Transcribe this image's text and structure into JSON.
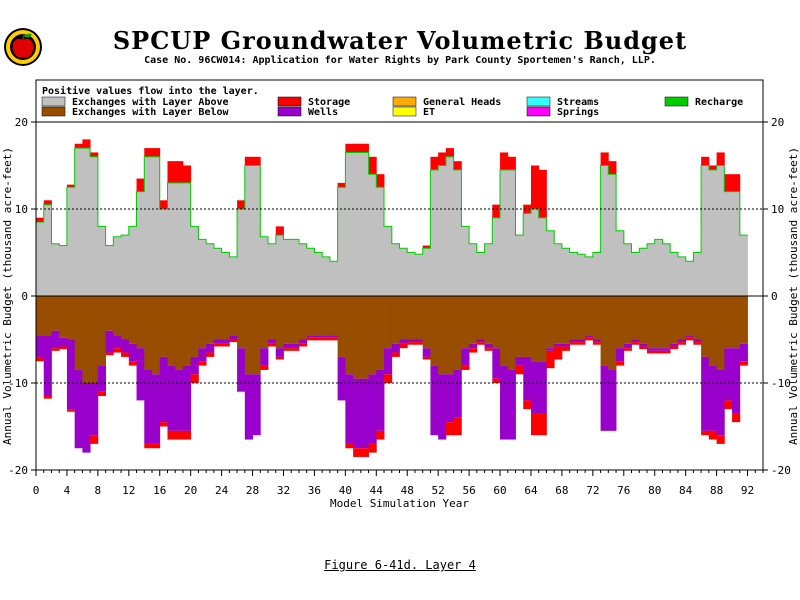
{
  "figure": {
    "title": "SPCUP Groundwater Volumetric Budget",
    "subtitle": "Case No. 96CW014: Application for Water Rights by Park County Sportemen's Ranch, LLP.",
    "caption": "Figure 6-41d.  Layer 4"
  },
  "chart_data": {
    "type": "bar",
    "stacked": true,
    "title": "SPCUP Groundwater Volumetric Budget",
    "xlabel": "Model Simulation Year",
    "ylabel": "Annual Volumetric Budget (thousand acre-feet)",
    "xlim": [
      0,
      94
    ],
    "ylim": [
      -20,
      20
    ],
    "x_ticks": [
      0,
      4,
      8,
      12,
      16,
      20,
      24,
      28,
      32,
      36,
      40,
      44,
      48,
      52,
      56,
      60,
      64,
      68,
      72,
      76,
      80,
      84,
      88,
      92
    ],
    "y_ticks": [
      20,
      10,
      0,
      -10,
      -20
    ],
    "reference_lines": [
      10,
      -10
    ],
    "legend_note": "Positive values flow into the layer.",
    "legend_placement": "top, inside plot",
    "legend": [
      {
        "name": "Exchanges with Layer Above",
        "color": "#c0c0c0"
      },
      {
        "name": "Exchanges with Layer Below",
        "color": "#994d00"
      },
      {
        "name": "Storage",
        "color": "#ff0000"
      },
      {
        "name": "Wells",
        "color": "#9900cc"
      },
      {
        "name": "General Heads",
        "color": "#ffaa00"
      },
      {
        "name": "ET",
        "color": "#ffff00"
      },
      {
        "name": "Streams",
        "color": "#33ffff"
      },
      {
        "name": "Springs",
        "color": "#ff00ff"
      },
      {
        "name": "Recharge",
        "color": "#00cc00"
      }
    ],
    "years": [
      0,
      1,
      2,
      3,
      4,
      5,
      6,
      7,
      8,
      9,
      10,
      11,
      12,
      13,
      14,
      15,
      16,
      17,
      18,
      19,
      20,
      21,
      22,
      23,
      24,
      25,
      26,
      27,
      28,
      29,
      30,
      31,
      32,
      33,
      34,
      35,
      36,
      37,
      38,
      39,
      40,
      41,
      42,
      43,
      44,
      45,
      46,
      47,
      48,
      49,
      50,
      51,
      52,
      53,
      54,
      55,
      56,
      57,
      58,
      59,
      60,
      61,
      62,
      63,
      64,
      65,
      66,
      67,
      68,
      69,
      70,
      71,
      72,
      73,
      74,
      75,
      76,
      77,
      78,
      79,
      80,
      81,
      82,
      83,
      84,
      85,
      86,
      87,
      88,
      89,
      90,
      91,
      92,
      93
    ],
    "series": [
      {
        "name": "Exchanges with Layer Above",
        "values": [
          8.5,
          10.5,
          6,
          5.8,
          12.5,
          17,
          17,
          16,
          8,
          5.8,
          6.8,
          7,
          8,
          12,
          16,
          16,
          10,
          13,
          13,
          13,
          8,
          6.5,
          6,
          5.5,
          5,
          4.5,
          10,
          15,
          15,
          6.8,
          6,
          7,
          6.5,
          6.5,
          6,
          5.5,
          5,
          4.5,
          4,
          12.5,
          16.5,
          16.5,
          16.5,
          14,
          12.5,
          8,
          6,
          5.5,
          5,
          4.8,
          5.5,
          14.5,
          15,
          16,
          14.5,
          8,
          6,
          5,
          6,
          9,
          14.5,
          14.5,
          7,
          9.5,
          10,
          9,
          7.5,
          6,
          5.5,
          5,
          4.8,
          4.5,
          5,
          15,
          14,
          7.5,
          6,
          5,
          5.5,
          6,
          6.5,
          6,
          5,
          4.5,
          4,
          5,
          15,
          14.5,
          15,
          12,
          12,
          7
        ]
      },
      {
        "name": "Storage",
        "values": [
          0.5,
          0.5,
          0,
          0,
          0.3,
          0.5,
          1,
          0.5,
          0,
          0,
          0,
          0,
          0,
          1.5,
          1,
          1,
          1,
          2.5,
          2.5,
          2,
          0,
          0,
          0,
          0,
          0,
          0,
          1,
          1,
          1,
          0,
          0,
          1,
          0,
          0,
          0,
          0,
          0,
          0,
          0,
          0.5,
          1,
          1,
          1,
          2,
          1.5,
          0,
          0,
          0,
          0,
          0,
          0.3,
          1.5,
          1.5,
          1,
          1,
          0,
          0,
          0,
          0,
          1.5,
          2,
          1.5,
          0,
          1,
          5,
          5.5,
          0,
          0,
          0,
          0,
          0,
          0,
          0,
          1.5,
          1.5,
          0,
          0,
          0,
          0,
          0,
          0,
          0,
          0,
          0,
          0,
          0,
          1,
          0.5,
          1.5,
          2,
          2,
          0
        ]
      },
      {
        "name": "Exchanges with Layer Below",
        "values": [
          -4.5,
          -4.5,
          -4,
          -4.8,
          -5,
          -8.5,
          -10,
          -10,
          -8,
          -4,
          -4.5,
          -5,
          -5.5,
          -6,
          -8.5,
          -9,
          -7,
          -8,
          -8.5,
          -8,
          -7,
          -6,
          -5.5,
          -5,
          -5,
          -4.5,
          -6,
          -9,
          -9,
          -6,
          -5,
          -6,
          -5.5,
          -5.5,
          -5,
          -4.5,
          -4.5,
          -4.5,
          -4.5,
          -7,
          -9,
          -9.5,
          -9.5,
          -9,
          -8.5,
          -6,
          -5.5,
          -5,
          -5,
          -5,
          -6,
          -8,
          -9,
          -9,
          -8.5,
          -6,
          -5.5,
          -5,
          -5.5,
          -6,
          -8,
          -8.5,
          -7,
          -7,
          -7.5,
          -7.5,
          -6,
          -5.5,
          -5.5,
          -5,
          -5,
          -4.5,
          -5,
          -8,
          -8.5,
          -6,
          -5.5,
          -5,
          -5.5,
          -6,
          -6,
          -6,
          -5.5,
          -5,
          -4.5,
          -5,
          -7,
          -8,
          -8.5,
          -6,
          -6,
          -5.5
        ]
      },
      {
        "name": "Wells",
        "values": [
          -2.5,
          -7,
          -2,
          -1,
          -8,
          -9,
          -8,
          -6,
          -3,
          -2.5,
          -1.5,
          -1.5,
          -2,
          -6,
          -8.5,
          -8,
          -7.5,
          -7.5,
          -7,
          -7.5,
          -2,
          -1.5,
          -1,
          -0.5,
          -0.5,
          -0.5,
          -5,
          -7.5,
          -7,
          -2,
          -0.5,
          -1,
          -0.5,
          -0.5,
          -0.5,
          -0.3,
          -0.3,
          -0.3,
          -0.3,
          -5,
          -8,
          -8,
          -8,
          -8,
          -7,
          -3,
          -1,
          -0.5,
          -0.3,
          -0.3,
          -1,
          -8,
          -7.5,
          -5.5,
          -5.5,
          -2,
          -0.5,
          -0.3,
          -0.5,
          -3.5,
          -8.5,
          -8,
          -1,
          -5,
          -6,
          -6,
          -0.3,
          -0.3,
          -0.3,
          -0.3,
          -0.3,
          -0.3,
          -0.3,
          -7.5,
          -7,
          -1.5,
          -0.5,
          -0.3,
          -0.3,
          -0.3,
          -0.3,
          -0.3,
          -0.3,
          -0.3,
          -0.3,
          -0.3,
          -8.5,
          -7.5,
          -7.5,
          -6,
          -7.5,
          -2
        ]
      },
      {
        "name": "Storage (outflow)",
        "values": [
          -0.5,
          -0.3,
          -0.3,
          -0.3,
          -0.3,
          0,
          0,
          -1,
          -0.5,
          -0.3,
          -0.5,
          -0.5,
          -0.5,
          0,
          -0.5,
          -0.5,
          -0.5,
          -1,
          -1,
          -1,
          -1,
          -0.5,
          -0.5,
          -0.3,
          -0.3,
          -0.3,
          0,
          0,
          0,
          -0.5,
          -0.3,
          -0.3,
          -0.3,
          -0.3,
          -0.3,
          -0.3,
          -0.3,
          -0.3,
          -0.3,
          0,
          -0.5,
          -1,
          -1,
          -1,
          -1,
          -1,
          -0.5,
          -0.5,
          -0.3,
          -0.3,
          -0.3,
          0,
          0,
          -1.5,
          -2,
          -0.5,
          -0.5,
          -0.3,
          -0.3,
          -0.5,
          0,
          0,
          -1,
          -1,
          -2.5,
          -2.5,
          -2,
          -1.5,
          -0.5,
          -0.3,
          -0.3,
          -0.3,
          -0.3,
          0,
          0,
          -0.5,
          -0.3,
          -0.3,
          -0.3,
          -0.3,
          -0.3,
          -0.3,
          -0.3,
          -0.3,
          -0.3,
          -0.3,
          -0.5,
          -1,
          -1,
          -1,
          -1,
          -0.5
        ]
      }
    ]
  }
}
